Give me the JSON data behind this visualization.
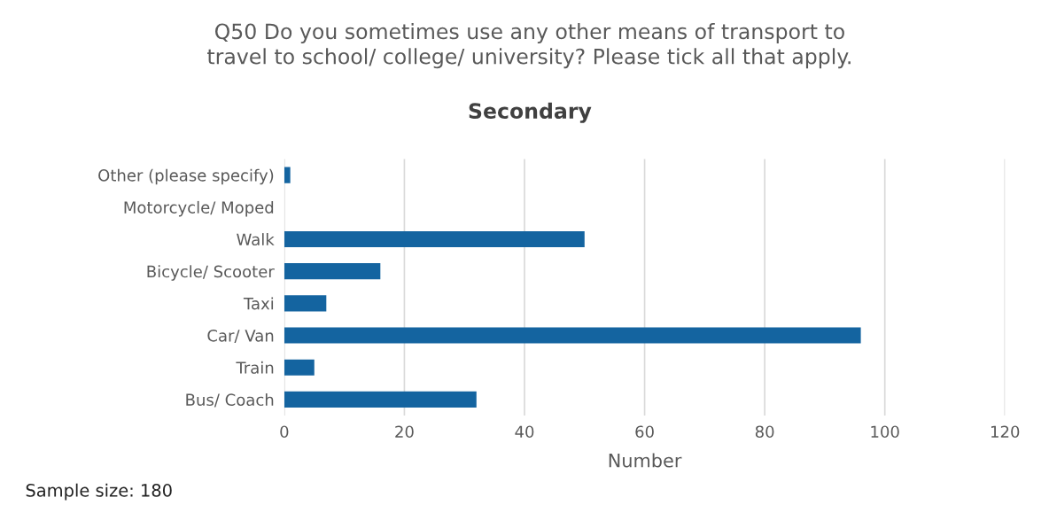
{
  "chart_data": {
    "type": "bar",
    "orientation": "horizontal",
    "title": "Q50 Do you sometimes use any other means of transport to\ntravel to school/ college/ university? Please tick all that apply.",
    "subtitle": "Secondary",
    "xlabel": "Number",
    "categories": [
      "Other (please specify)",
      "Motorcycle/ Moped",
      "Walk",
      "Bicycle/ Scooter",
      "Taxi",
      "Car/ Van",
      "Train",
      "Bus/ Coach"
    ],
    "values": [
      1,
      0,
      50,
      16,
      7,
      96,
      5,
      32
    ],
    "color": "#1464a0",
    "xlim": [
      0,
      120
    ],
    "xticks": [
      0,
      20,
      40,
      60,
      80,
      100,
      120
    ],
    "grid": "x",
    "annotations": [
      "Sample size: 180"
    ]
  }
}
